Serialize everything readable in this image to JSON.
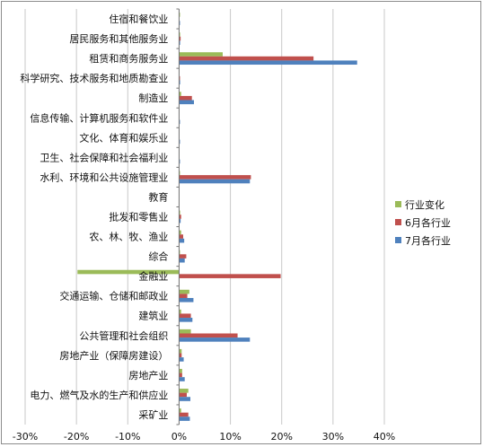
{
  "chart_data": {
    "type": "bar",
    "orientation": "horizontal",
    "title": "",
    "xlabel": "",
    "ylabel": "",
    "xlim": [
      -0.3,
      0.4
    ],
    "x_ticks": [
      -0.3,
      -0.2,
      -0.1,
      0,
      0.1,
      0.2,
      0.3,
      0.4
    ],
    "x_tick_labels": [
      "-30%",
      "-20%",
      "-10%",
      "0%",
      "10%",
      "20%",
      "30%",
      "40%"
    ],
    "grid": "vertical",
    "legend_position": "right",
    "categories": [
      "住宿和餐饮业",
      "居民服务和其他服务业",
      "租赁和商务服务业",
      "科学研究、技术服务和地质勘查业",
      "制造业",
      "信息传输、计算机服务和软件业",
      "文化、体育和娱乐业",
      "卫生、社会保障和社会福利业",
      "水利、环境和公共设施管理业",
      "教育",
      "批发和零售业",
      "农、林、牧、渔业",
      "综合",
      "金融业",
      "交通运输、仓储和邮政业",
      "建筑业",
      "公共管理和社会组织",
      "房地产业（保障房建设）",
      "房地产业",
      "电力、燃气及水的生产和供应业",
      "采矿业"
    ],
    "series": [
      {
        "name": "行业变化",
        "color": "#9BBB59",
        "values": [
          0.001,
          0.002,
          0.085,
          0.0,
          0.004,
          0.0,
          0.0,
          0.0,
          0.001,
          0.0,
          0.002,
          0.004,
          0.001,
          -0.198,
          0.02,
          0.004,
          0.023,
          0.005,
          0.006,
          0.018,
          0.004
        ]
      },
      {
        "name": "6月各行业",
        "color": "#C0504D",
        "values": [
          0.0,
          0.003,
          0.262,
          0.001,
          0.025,
          0.0,
          0.0,
          0.0,
          0.14,
          0.0,
          0.004,
          0.008,
          0.014,
          0.198,
          0.016,
          0.023,
          0.114,
          0.005,
          0.006,
          0.015,
          0.018
        ]
      },
      {
        "name": "7月各行业",
        "color": "#4F81BD",
        "values": [
          0.001,
          0.002,
          0.347,
          0.002,
          0.029,
          0.001,
          0.001,
          0.001,
          0.138,
          0.0,
          0.003,
          0.01,
          0.011,
          0.0,
          0.028,
          0.026,
          0.138,
          0.009,
          0.011,
          0.022,
          0.021
        ]
      }
    ]
  }
}
